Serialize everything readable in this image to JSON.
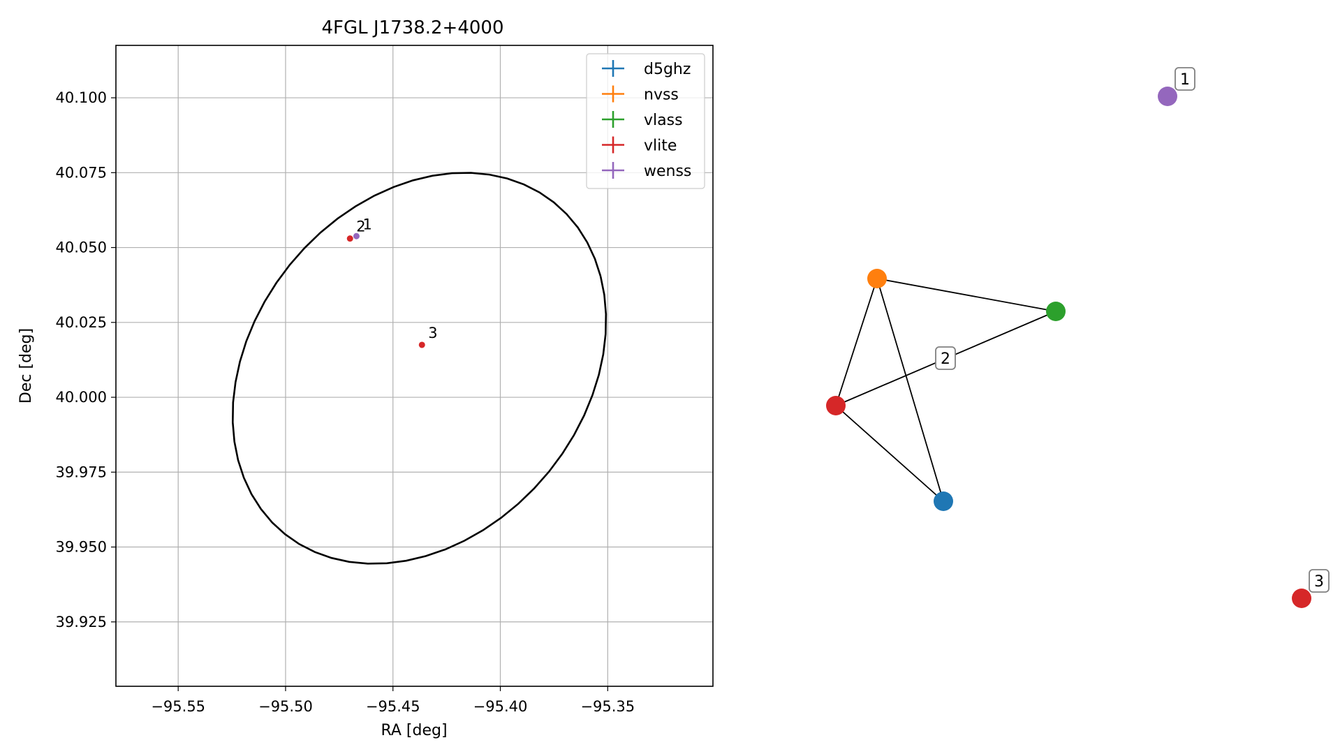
{
  "chart_data": [
    {
      "type": "scatter",
      "title": "4FGL J1738.2+4000",
      "xlabel": "RA [deg]",
      "ylabel": "Dec [deg]",
      "xlim": [
        -95.579,
        -95.301
      ],
      "ylim": [
        39.9035,
        40.1175
      ],
      "grid": true,
      "legend_position": "upper right",
      "x_ticks": [
        -95.55,
        -95.5,
        -95.45,
        -95.4,
        -95.35
      ],
      "x_tick_labels": [
        "−95.55",
        "−95.50",
        "−95.45",
        "−95.40",
        "−95.35"
      ],
      "y_ticks": [
        39.925,
        39.95,
        39.975,
        40.0,
        40.025,
        40.05,
        40.075,
        40.1
      ],
      "y_tick_labels": [
        "39.925",
        "39.950",
        "39.975",
        "40.000",
        "40.025",
        "40.050",
        "40.075",
        "40.100"
      ],
      "series": [
        {
          "name": "d5ghz",
          "color": "#1f77b4",
          "points": []
        },
        {
          "name": "nvss",
          "color": "#ff7f0e",
          "points": []
        },
        {
          "name": "vlass",
          "color": "#2ca02c",
          "points": []
        },
        {
          "name": "vlite",
          "color": "#d62728",
          "points": [
            {
              "x": -95.47,
              "y": 40.053,
              "label": "2"
            },
            {
              "x": -95.4365,
              "y": 40.0175,
              "label": "3"
            }
          ]
        },
        {
          "name": "wenss",
          "color": "#9467bd",
          "points": [
            {
              "x": -95.467,
              "y": 40.0538,
              "label": "1"
            }
          ]
        }
      ],
      "ellipse": {
        "center_ra": -95.4377,
        "center_dec": 40.0097,
        "semi_axis_a_deg": 0.0898,
        "semi_axis_b_deg": 0.0613,
        "position_angle_deg": 20,
        "color": "#000000"
      }
    },
    {
      "type": "network",
      "nodes": [
        {
          "id": "nvss",
          "color": "#ff7f0e",
          "label": ""
        },
        {
          "id": "vlass",
          "color": "#2ca02c",
          "label": ""
        },
        {
          "id": "vlite",
          "color": "#d62728",
          "label": ""
        },
        {
          "id": "d5ghz",
          "color": "#1f77b4",
          "label": ""
        },
        {
          "id": "wenss-1",
          "color": "#9467bd",
          "label": "1"
        },
        {
          "id": "vlite-3",
          "color": "#d62728",
          "label": "3"
        }
      ],
      "edges": [
        [
          "nvss",
          "vlass"
        ],
        [
          "nvss",
          "vlite"
        ],
        [
          "nvss",
          "d5ghz"
        ],
        [
          "vlite",
          "vlass"
        ],
        [
          "vlite",
          "d5ghz"
        ]
      ],
      "group_labels": [
        "2"
      ]
    }
  ]
}
